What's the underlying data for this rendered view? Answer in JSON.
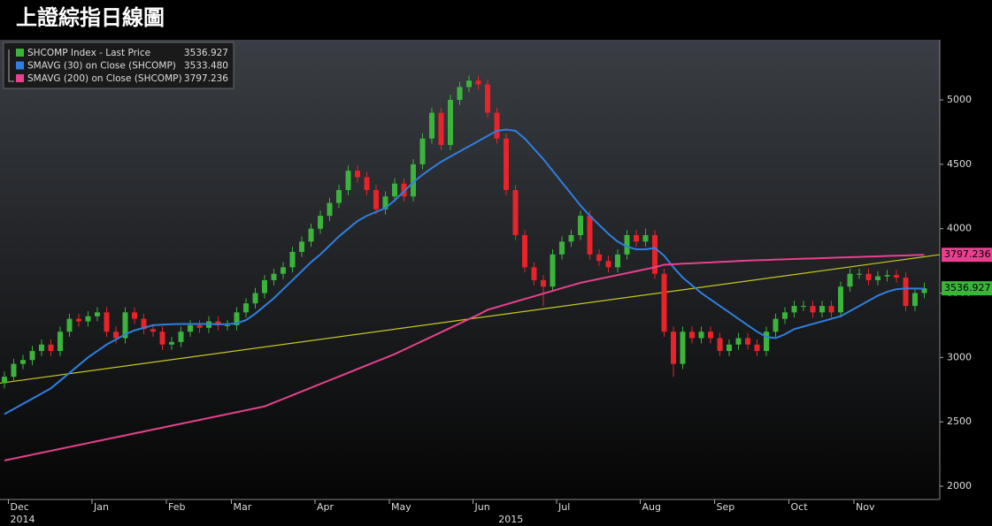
{
  "chart_data": {
    "type": "candlestick",
    "title": "上證綜指日線圖",
    "categories": [
      null,
      "Dec",
      null,
      null,
      null,
      null,
      null,
      null,
      null,
      null,
      "Jan",
      null,
      null,
      null,
      null,
      null,
      null,
      null,
      "Feb",
      null,
      null,
      null,
      null,
      null,
      null,
      "Mar",
      null,
      null,
      null,
      null,
      null,
      null,
      null,
      null,
      "Apr",
      null,
      null,
      null,
      null,
      null,
      null,
      null,
      "May",
      null,
      null,
      null,
      null,
      null,
      null,
      null,
      null,
      "Jun",
      null,
      null,
      null,
      null,
      null,
      null,
      null,
      null,
      "Jul",
      null,
      null,
      null,
      null,
      null,
      null,
      null,
      null,
      "Aug",
      null,
      null,
      null,
      null,
      null,
      null,
      null,
      "Sep",
      null,
      null,
      null,
      null,
      null,
      null,
      null,
      "Oct",
      null,
      null,
      null,
      null,
      null,
      null,
      "Nov",
      null,
      null,
      null,
      null,
      null,
      null,
      null
    ],
    "years": [
      "2014",
      "2015"
    ],
    "open": [
      2800,
      2850,
      2950,
      2980,
      3050,
      3100,
      3050,
      3200,
      3300,
      3280,
      3320,
      3350,
      3200,
      3150,
      3350,
      3300,
      3220,
      3200,
      3100,
      3120,
      3200,
      3250,
      3230,
      3280,
      3250,
      3250,
      3350,
      3420,
      3500,
      3600,
      3650,
      3700,
      3820,
      3900,
      4000,
      4100,
      4200,
      4300,
      4450,
      4400,
      4300,
      4150,
      4250,
      4350,
      4250,
      4500,
      4700,
      4900,
      4650,
      5000,
      5100,
      5150,
      5120,
      4900,
      4700,
      4300,
      3950,
      3700,
      3600,
      3550,
      3800,
      3900,
      3950,
      4100,
      3800,
      3750,
      3700,
      3800,
      3950,
      3900,
      3950,
      3650,
      3200,
      2950,
      3200,
      3150,
      3200,
      3150,
      3050,
      3100,
      3150,
      3100,
      3050,
      3200,
      3300,
      3350,
      3400,
      3400,
      3350,
      3400,
      3350,
      3550,
      3650,
      3650,
      3600,
      3630,
      3640,
      3620,
      3400,
      3500
    ],
    "high": [
      2890,
      2990,
      3020,
      3090,
      3140,
      3140,
      3240,
      3340,
      3340,
      3360,
      3390,
      3390,
      3240,
      3390,
      3390,
      3340,
      3260,
      3240,
      3160,
      3240,
      3290,
      3290,
      3320,
      3320,
      3290,
      3390,
      3460,
      3540,
      3640,
      3690,
      3740,
      3860,
      3940,
      4040,
      4140,
      4240,
      4340,
      4490,
      4490,
      4440,
      4340,
      4290,
      4390,
      4390,
      4540,
      4740,
      4940,
      4940,
      5040,
      5140,
      5190,
      5190,
      5160,
      4940,
      4740,
      4340,
      3990,
      3740,
      3640,
      3840,
      3940,
      3990,
      4140,
      4140,
      3840,
      3790,
      3840,
      3990,
      3990,
      4000,
      3990,
      3690,
      3240,
      3240,
      3240,
      3240,
      3240,
      3190,
      3140,
      3190,
      3190,
      3140,
      3240,
      3340,
      3390,
      3440,
      3440,
      3440,
      3440,
      3440,
      3590,
      3690,
      3690,
      3690,
      3670,
      3680,
      3680,
      3660,
      3540,
      3580
    ],
    "low": [
      2760,
      2810,
      2910,
      2940,
      3010,
      3010,
      3010,
      3160,
      3240,
      3240,
      3280,
      3160,
      3110,
      3110,
      3260,
      3180,
      3160,
      3060,
      3060,
      3080,
      3160,
      3190,
      3190,
      3210,
      3210,
      3210,
      3310,
      3380,
      3460,
      3560,
      3610,
      3660,
      3780,
      3860,
      3960,
      4060,
      4160,
      4260,
      4360,
      4260,
      4110,
      4110,
      4210,
      4210,
      4210,
      4460,
      4660,
      4610,
      4610,
      4960,
      5060,
      5080,
      4860,
      4660,
      4260,
      3910,
      3660,
      3560,
      3400,
      3510,
      3760,
      3860,
      3910,
      3760,
      3710,
      3660,
      3660,
      3760,
      3860,
      3860,
      3610,
      3160,
      2850,
      2910,
      3110,
      3110,
      3110,
      3010,
      3010,
      3060,
      3060,
      3010,
      3010,
      3160,
      3260,
      3310,
      3360,
      3310,
      3310,
      3310,
      3310,
      3510,
      3610,
      3560,
      3560,
      3590,
      3580,
      3360,
      3360,
      3460
    ],
    "close": [
      2850,
      2950,
      2980,
      3050,
      3100,
      3050,
      3200,
      3300,
      3280,
      3320,
      3350,
      3200,
      3150,
      3350,
      3300,
      3220,
      3200,
      3100,
      3120,
      3200,
      3250,
      3230,
      3280,
      3250,
      3250,
      3350,
      3420,
      3500,
      3600,
      3650,
      3700,
      3820,
      3900,
      4000,
      4100,
      4200,
      4300,
      4450,
      4400,
      4300,
      4150,
      4250,
      4350,
      4250,
      4500,
      4700,
      4900,
      4650,
      5000,
      5100,
      5150,
      5120,
      4900,
      4700,
      4300,
      3950,
      3700,
      3600,
      3550,
      3800,
      3900,
      3950,
      4100,
      3800,
      3750,
      3700,
      3800,
      3950,
      3900,
      3950,
      3650,
      3200,
      2950,
      3200,
      3150,
      3200,
      3150,
      3050,
      3100,
      3150,
      3100,
      3050,
      3200,
      3300,
      3350,
      3400,
      3400,
      3350,
      3400,
      3350,
      3550,
      3650,
      3650,
      3600,
      3630,
      3640,
      3620,
      3400,
      3500,
      3536.927
    ],
    "up_color": "#3cb43c",
    "down_color": "#e8232a",
    "series": [
      {
        "name": "SHCOMP Index - Last Price",
        "color": "#3cb43c",
        "last_value": 3536.927
      },
      {
        "name": "SMAVG (30) on Close (SHCOMP)",
        "color": "#2f7fe0",
        "last_value": 3533.48,
        "last_label": "3533.480",
        "values": [
          2560,
          2600,
          2640,
          2680,
          2720,
          2760,
          2820,
          2880,
          2940,
          3000,
          3050,
          3100,
          3140,
          3180,
          3210,
          3230,
          3250,
          3255,
          3258,
          3260,
          3260,
          3260,
          3260,
          3258,
          3258,
          3265,
          3290,
          3340,
          3400,
          3460,
          3530,
          3600,
          3670,
          3740,
          3800,
          3870,
          3940,
          4000,
          4060,
          4100,
          4130,
          4160,
          4220,
          4290,
          4360,
          4420,
          4470,
          4520,
          4560,
          4600,
          4640,
          4680,
          4720,
          4760,
          4770,
          4760,
          4700,
          4620,
          4540,
          4450,
          4360,
          4270,
          4180,
          4100,
          4030,
          3960,
          3900,
          3860,
          3840,
          3840,
          3850,
          3790,
          3700,
          3620,
          3560,
          3500,
          3450,
          3400,
          3350,
          3300,
          3250,
          3200,
          3160,
          3150,
          3180,
          3220,
          3240,
          3260,
          3280,
          3300,
          3320,
          3360,
          3400,
          3440,
          3480,
          3510,
          3530,
          3535,
          3535,
          3533.48
        ]
      },
      {
        "name": "SMAVG (200) on Close (SHCOMP)",
        "color": "#e8418f",
        "last_value": 3797.236,
        "values": [
          2200,
          2215,
          2230,
          2245,
          2260,
          2275,
          2290,
          2305,
          2320,
          2335,
          2350,
          2365,
          2380,
          2395,
          2410,
          2425,
          2440,
          2455,
          2470,
          2485,
          2500,
          2515,
          2530,
          2545,
          2560,
          2575,
          2590,
          2605,
          2620,
          2649,
          2678,
          2707,
          2736,
          2765,
          2794,
          2823,
          2852,
          2881,
          2910,
          2939,
          2968,
          2997,
          3026,
          3060,
          3094,
          3128,
          3162,
          3196,
          3230,
          3264,
          3298,
          3332,
          3370,
          3391,
          3412,
          3433,
          3454,
          3475,
          3496,
          3517,
          3538,
          3559,
          3580,
          3595,
          3610,
          3625,
          3640,
          3655,
          3670,
          3685,
          3700,
          3720,
          3724,
          3728,
          3731,
          3735,
          3738,
          3742,
          3745,
          3749,
          3752,
          3755,
          3757,
          3760,
          3762,
          3764,
          3767,
          3769,
          3771,
          3774,
          3776,
          3778,
          3781,
          3783,
          3785,
          3788,
          3790,
          3792,
          3795,
          3797.236
        ]
      }
    ],
    "trendline": {
      "color": "#c8c820",
      "values": [
        2805,
        3782
      ]
    },
    "ylim": [
      1897,
      5467
    ],
    "yticks": [
      2000,
      2500,
      3000,
      3500,
      4000,
      4500,
      5000
    ]
  }
}
